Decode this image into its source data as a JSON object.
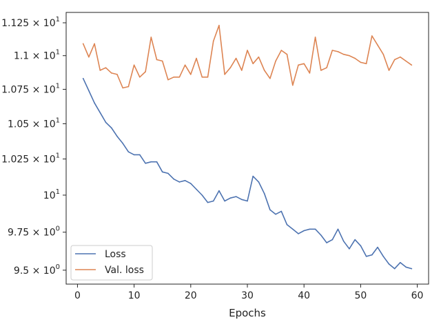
{
  "chart_data": {
    "type": "line",
    "xlabel": "Epochs",
    "ylabel": "",
    "yscale": "log",
    "xlim": [
      -2,
      62
    ],
    "ylim": [
      9.41,
      11.33
    ],
    "grid": false,
    "legend_position": "lower-left",
    "x_ticks": [
      0,
      10,
      20,
      30,
      40,
      50,
      60
    ],
    "x_tick_labels": [
      "0",
      "10",
      "20",
      "30",
      "40",
      "50",
      "60"
    ],
    "y_ticks": [
      9.5,
      9.75,
      10,
      10.25,
      10.5,
      10.75,
      11.0,
      11.25
    ],
    "y_tick_labels": [
      {
        "mantissa": "9.5",
        "power": "0",
        "full": "9.5 × 10^0"
      },
      {
        "mantissa": "9.75",
        "power": "0",
        "full": "9.75 × 10^0"
      },
      {
        "mantissa": "10",
        "power": "1",
        "full": "10^1",
        "plain": true
      },
      {
        "mantissa": "1.025",
        "power": "1",
        "full": "1.025 × 10^1"
      },
      {
        "mantissa": "1.05",
        "power": "1",
        "full": "1.05 × 10^1"
      },
      {
        "mantissa": "1.075",
        "power": "1",
        "full": "1.075 × 10^1"
      },
      {
        "mantissa": "1.1",
        "power": "1",
        "full": "1.1 × 10^1"
      },
      {
        "mantissa": "1.125",
        "power": "1",
        "full": "1.125 × 10^1"
      }
    ],
    "x": [
      1,
      2,
      3,
      4,
      5,
      6,
      7,
      8,
      9,
      10,
      11,
      12,
      13,
      14,
      15,
      16,
      17,
      18,
      19,
      20,
      21,
      22,
      23,
      24,
      25,
      26,
      27,
      28,
      29,
      30,
      31,
      32,
      33,
      34,
      35,
      36,
      37,
      38,
      39,
      40,
      41,
      42,
      43,
      44,
      45,
      46,
      47,
      48,
      49,
      50,
      51,
      52,
      53,
      54,
      55,
      56,
      57,
      58,
      59
    ],
    "series": [
      {
        "name": "Loss",
        "color": "#4c72b0",
        "values": [
          10.83,
          10.74,
          10.65,
          10.58,
          10.51,
          10.47,
          10.41,
          10.36,
          10.3,
          10.28,
          10.28,
          10.22,
          10.23,
          10.23,
          10.16,
          10.15,
          10.11,
          10.09,
          10.1,
          10.08,
          10.04,
          10.0,
          9.95,
          9.96,
          10.03,
          9.96,
          9.98,
          9.99,
          9.97,
          9.96,
          10.13,
          10.09,
          10.01,
          9.9,
          9.87,
          9.89,
          9.8,
          9.77,
          9.74,
          9.76,
          9.77,
          9.77,
          9.73,
          9.68,
          9.7,
          9.77,
          9.69,
          9.64,
          9.7,
          9.66,
          9.59,
          9.6,
          9.65,
          9.59,
          9.54,
          9.51,
          9.55,
          9.52,
          9.51
        ]
      },
      {
        "name": "Val. loss",
        "color": "#dd8452",
        "values": [
          11.09,
          10.99,
          11.09,
          10.89,
          10.91,
          10.87,
          10.86,
          10.76,
          10.77,
          10.93,
          10.84,
          10.88,
          11.14,
          10.97,
          10.96,
          10.82,
          10.84,
          10.84,
          10.93,
          10.86,
          10.98,
          10.84,
          10.84,
          11.11,
          11.23,
          10.86,
          10.91,
          10.98,
          10.89,
          11.04,
          10.94,
          10.99,
          10.89,
          10.83,
          10.96,
          11.04,
          11.01,
          10.78,
          10.93,
          10.94,
          10.87,
          11.14,
          10.89,
          10.91,
          11.04,
          11.03,
          11.01,
          11.0,
          10.98,
          10.95,
          10.94,
          11.15,
          11.08,
          11.01,
          10.89,
          10.97,
          10.99,
          10.96,
          10.93
        ]
      }
    ]
  }
}
